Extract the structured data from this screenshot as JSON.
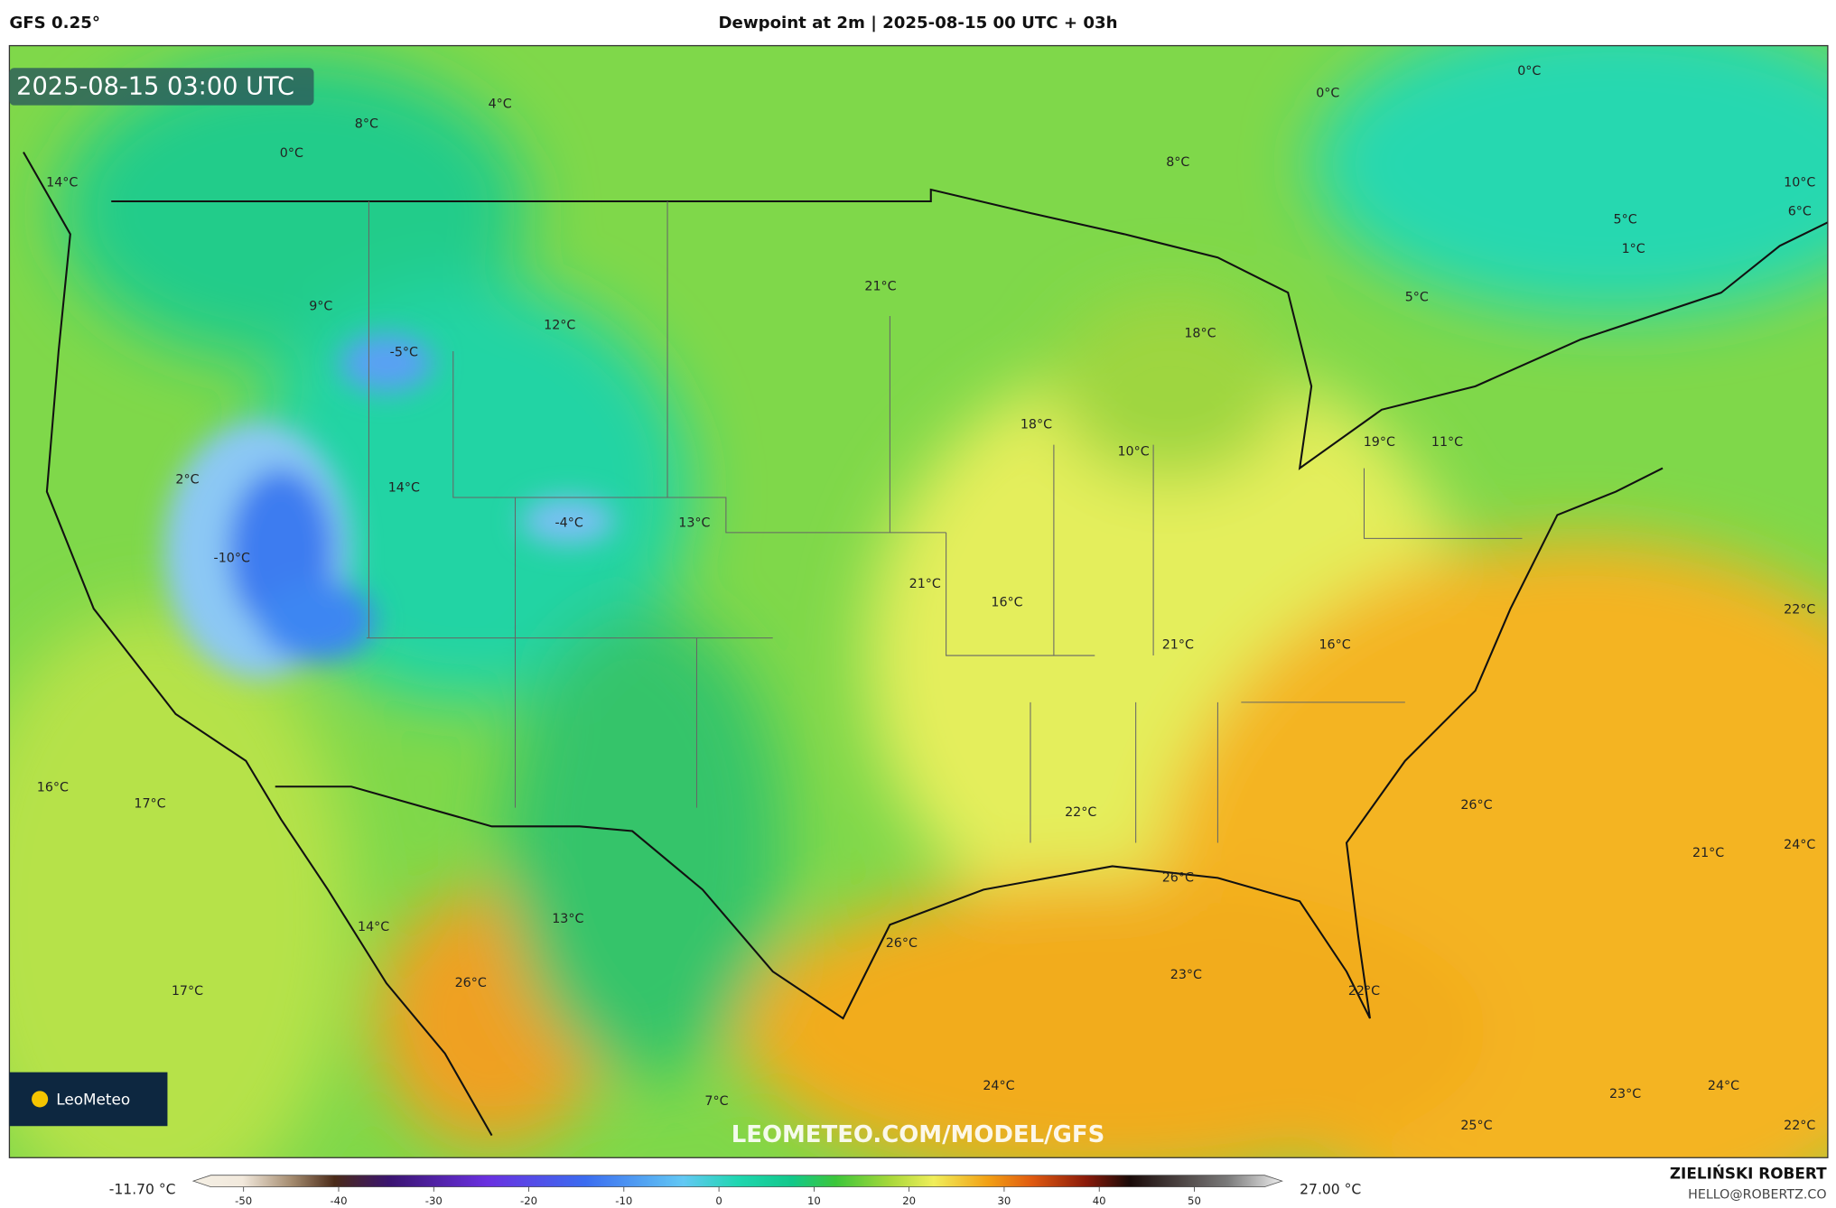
{
  "header": {
    "model": "GFS 0.25°",
    "title": "Dewpoint at 2m | 2025-08-15 00 UTC + 03h"
  },
  "map": {
    "timestamp": "2025-08-15 03:00 UTC",
    "watermark": "LEOMETEO.COM/MODEL/GFS",
    "logo": "LeoMeteo",
    "labels": [
      "0°C",
      "4°C",
      "8°C",
      "14°C",
      "9°C",
      "12°C",
      "-5°C",
      "2°C",
      "14°C",
      "-10°C",
      "-4°C",
      "13°C",
      "21°C",
      "8°C",
      "0°C",
      "0°C",
      "10°C",
      "5°C",
      "6°C",
      "1°C",
      "5°C",
      "18°C",
      "18°C",
      "10°C",
      "19°C",
      "11°C",
      "21°C",
      "16°C",
      "21°C",
      "16°C",
      "22°C",
      "16°C",
      "17°C",
      "22°C",
      "26°C",
      "24°C",
      "21°C",
      "26°C",
      "13°C",
      "14°C",
      "26°C",
      "23°C",
      "26°C",
      "22°C",
      "17°C",
      "24°C",
      "23°C",
      "24°C",
      "7°C",
      "25°C",
      "22°C"
    ]
  },
  "colorbar": {
    "min_label": "-11.70 °C",
    "max_label": "27.00 °C",
    "ticks": [
      -50,
      -40,
      -30,
      -20,
      -10,
      0,
      10,
      20,
      30,
      40,
      50
    ]
  },
  "footer": {
    "author": "ZIELIŃSKI ROBERT",
    "contact": "HELLO@ROBERTZ.CO"
  }
}
